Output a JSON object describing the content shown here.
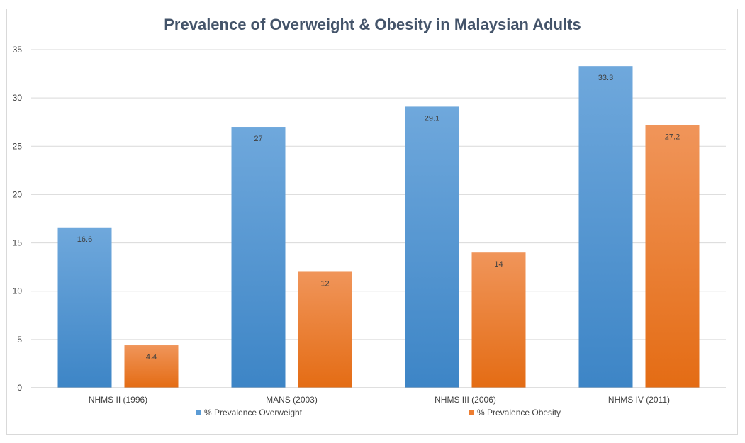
{
  "chart_data": {
    "type": "bar",
    "title": "Prevalence of Overweight & Obesity in Malaysian Adults",
    "categories": [
      "NHMS II (1996)",
      "MANS (2003)",
      "NHMS III (2006)",
      "NHMS IV (2011)"
    ],
    "series": [
      {
        "name": "% Prevalence Overweight",
        "values": [
          16.6,
          27,
          29.1,
          33.3
        ]
      },
      {
        "name": "% Prevalence Obesity",
        "values": [
          4.4,
          12,
          14,
          27.2
        ]
      }
    ],
    "ylim": [
      0,
      35
    ],
    "yticks": [
      0,
      5,
      10,
      15,
      20,
      25,
      30,
      35
    ],
    "grid": true,
    "legend_position": "bottom",
    "colors": {
      "overweight_top": "#6fa8dc",
      "overweight_bottom": "#3d85c6",
      "obesity_top": "#f0955a",
      "obesity_bottom": "#e46c14"
    }
  }
}
